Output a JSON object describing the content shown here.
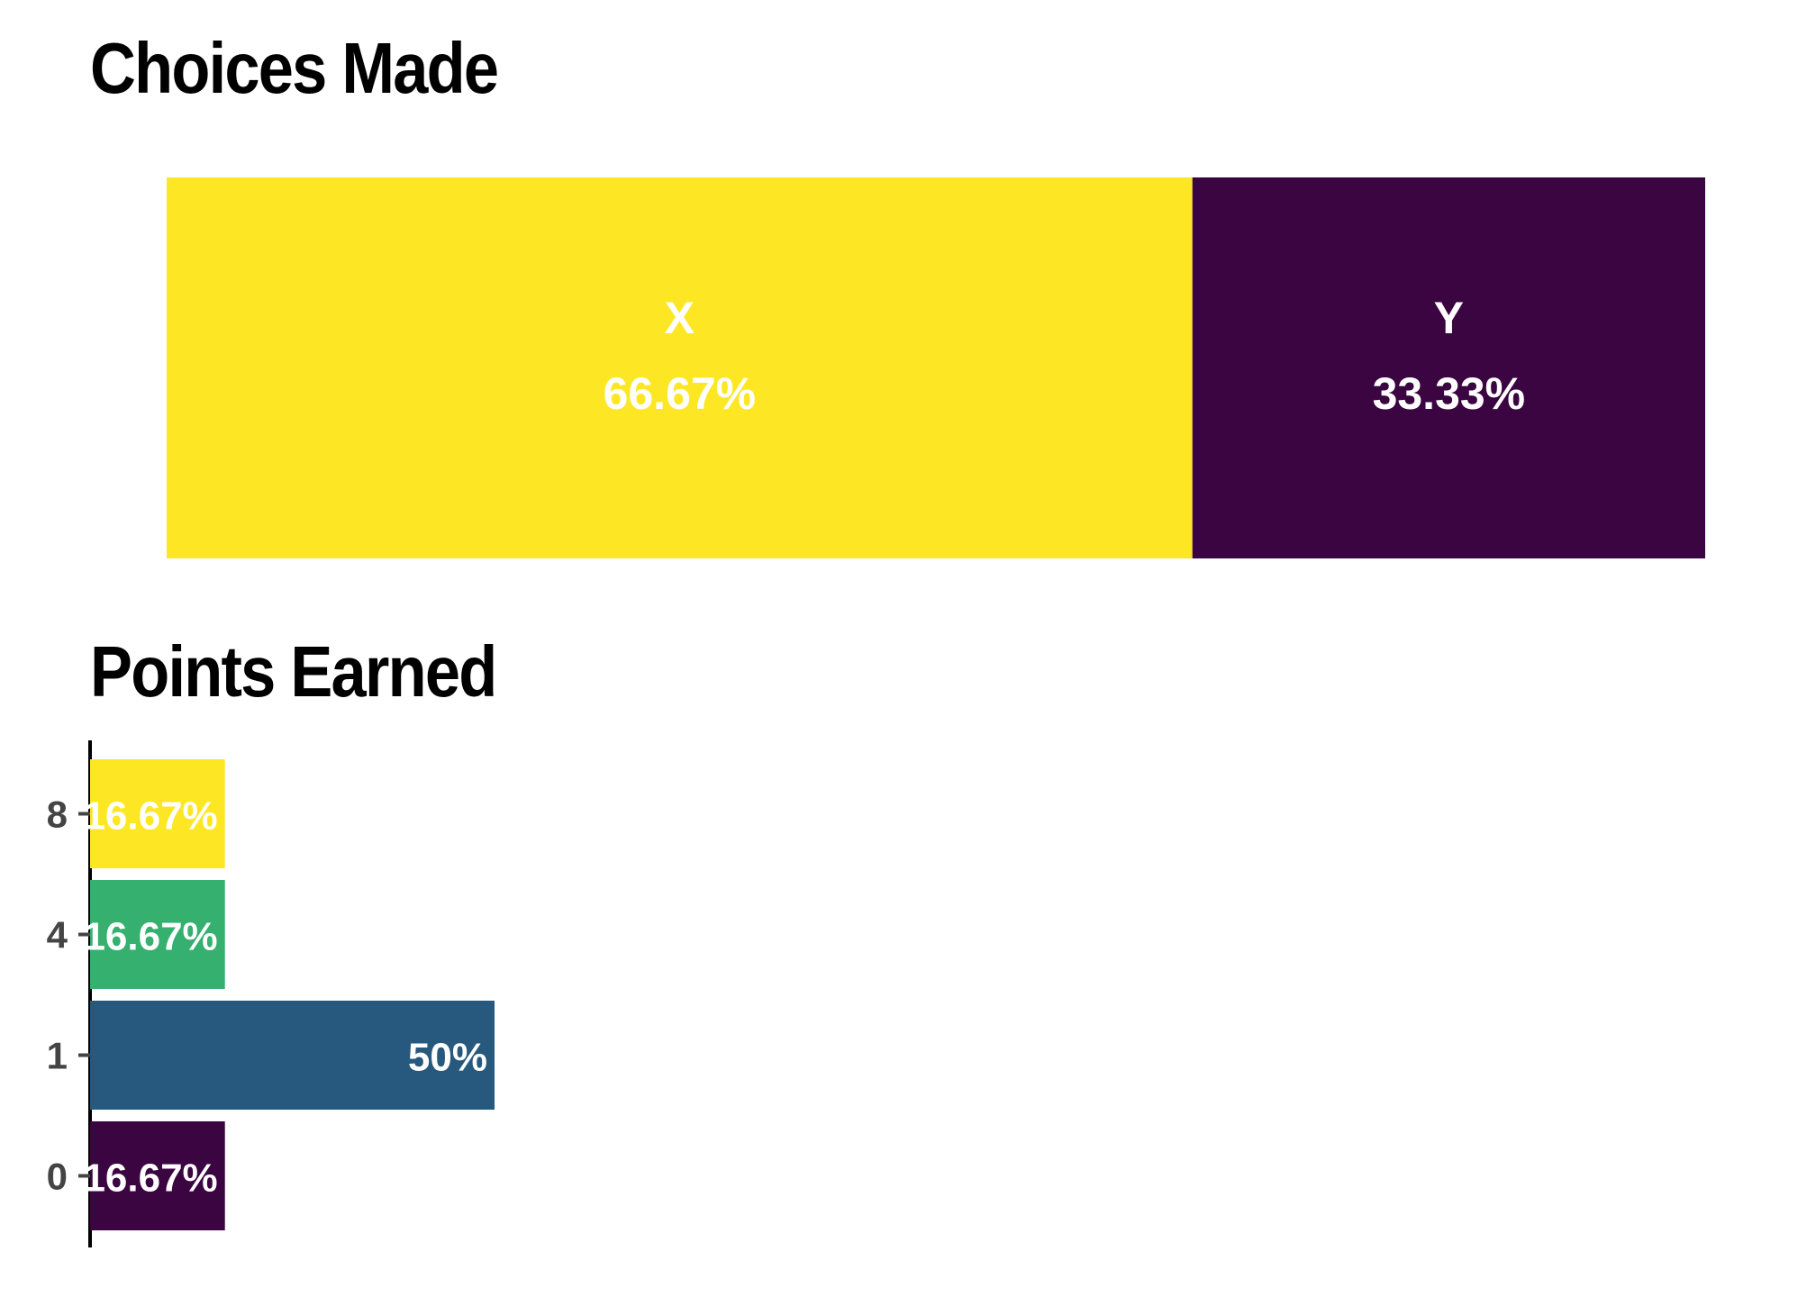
{
  "chart_data": [
    {
      "type": "bar",
      "orientation": "horizontal-stacked",
      "title": "Choices Made",
      "categories": [
        "X",
        "Y"
      ],
      "values": [
        66.67,
        33.33
      ],
      "value_labels": [
        "66.67%",
        "33.33%"
      ],
      "colors": [
        "#FDE725",
        "#3A0541"
      ],
      "grid": false,
      "legend": "none"
    },
    {
      "type": "bar",
      "orientation": "horizontal",
      "title": "Points Earned",
      "categories": [
        "8",
        "4",
        "1",
        "0"
      ],
      "values": [
        16.67,
        16.67,
        50,
        16.67
      ],
      "value_labels": [
        "16.67%",
        "16.67%",
        "50%",
        "16.67%"
      ],
      "colors": [
        "#FDE725",
        "#35B06F",
        "#27597E",
        "#3A0541"
      ],
      "xlim": [
        0,
        100
      ],
      "grid": false,
      "legend": "none"
    }
  ]
}
